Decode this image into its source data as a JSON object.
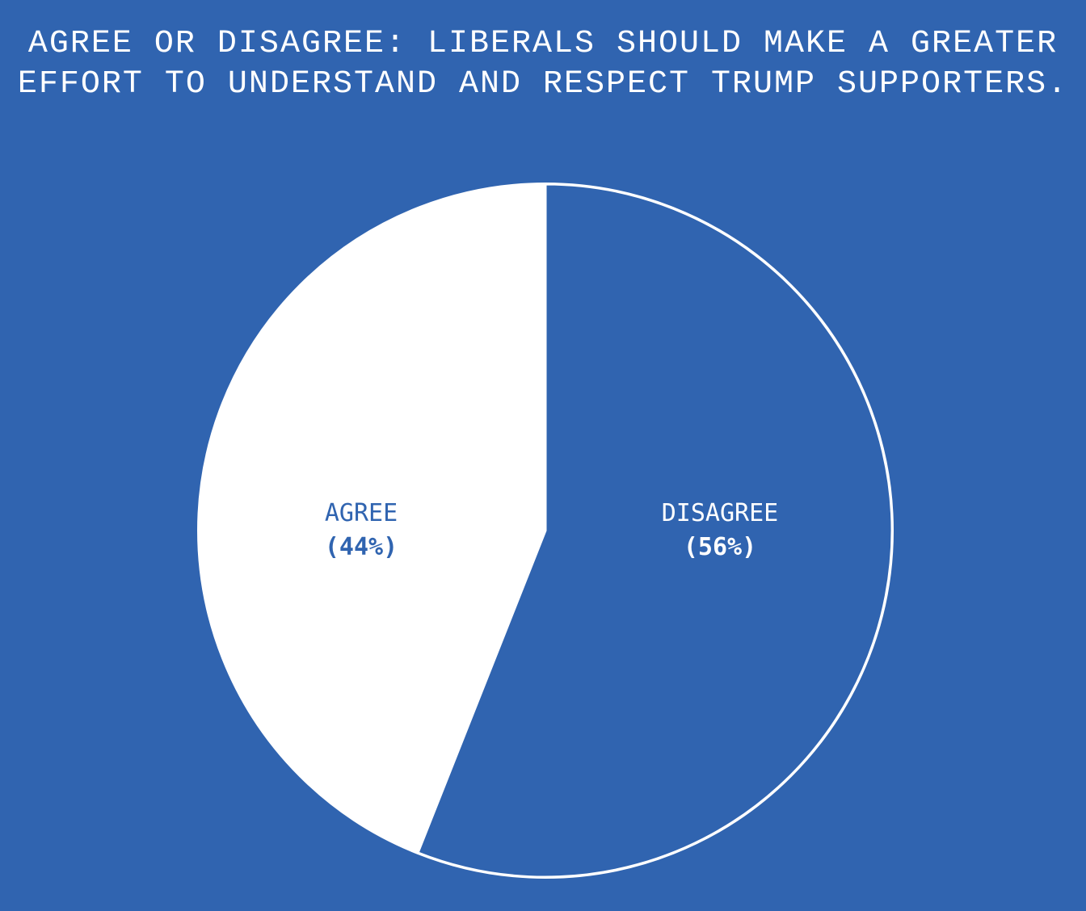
{
  "title": {
    "line1": "AGREE OR DISAGREE: LIBERALS SHOULD MAKE A GREATER",
    "line2": "EFFORT TO UNDERSTAND AND RESPECT TRUMP SUPPORTERS."
  },
  "colors": {
    "background": "#3064b0",
    "agree": "#ffffff",
    "disagree": "#3064b0",
    "outline": "#ffffff"
  },
  "slices": [
    {
      "label": "DISAGREE",
      "pct_label": "(56%)",
      "value": 56
    },
    {
      "label": "AGREE",
      "pct_label": "(44%)",
      "value": 44
    }
  ],
  "chart_data": {
    "type": "pie",
    "title": "AGREE OR DISAGREE: LIBERALS SHOULD MAKE A GREATER EFFORT TO UNDERSTAND AND RESPECT TRUMP SUPPORTERS.",
    "categories": [
      "DISAGREE",
      "AGREE"
    ],
    "values": [
      56,
      44
    ],
    "units": "%",
    "start_angle": "12 o'clock, clockwise",
    "legend": "none (labels inside slices)"
  }
}
